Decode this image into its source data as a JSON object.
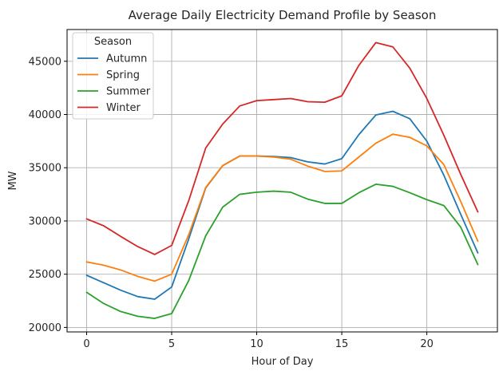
{
  "chart_data": {
    "type": "line",
    "title": "Average Daily Electricity Demand Profile by Season",
    "xlabel": "Hour of Day",
    "ylabel": "MW",
    "x": [
      0,
      1,
      2,
      3,
      4,
      5,
      6,
      7,
      8,
      9,
      10,
      11,
      12,
      13,
      14,
      15,
      16,
      17,
      18,
      19,
      20,
      21,
      22,
      23
    ],
    "xlim": [
      -1.15,
      24.15
    ],
    "ylim": [
      19580,
      47980
    ],
    "xticks": [
      0,
      5,
      10,
      15,
      20
    ],
    "yticks": [
      20000,
      25000,
      30000,
      35000,
      40000,
      45000
    ],
    "xtick_labels": [
      "0",
      "5",
      "10",
      "15",
      "20"
    ],
    "ytick_labels": [
      "20000",
      "25000",
      "30000",
      "35000",
      "40000",
      "45000"
    ],
    "grid": true,
    "legend": {
      "title": "Season",
      "placement": "top-left"
    },
    "series": [
      {
        "name": "Autumn",
        "color": "#1f77b4",
        "values": [
          24900,
          24200,
          23500,
          22900,
          22650,
          23800,
          28300,
          33100,
          35200,
          36100,
          36100,
          36050,
          35950,
          35550,
          35350,
          35850,
          38100,
          39950,
          40300,
          39600,
          37500,
          34300,
          30600,
          27000
        ]
      },
      {
        "name": "Spring",
        "color": "#ff7f0e",
        "values": [
          26150,
          25850,
          25400,
          24800,
          24350,
          25000,
          28700,
          33150,
          35200,
          36100,
          36100,
          36000,
          35800,
          35150,
          34650,
          34700,
          36000,
          37300,
          38150,
          37850,
          37050,
          35300,
          31800,
          28100
        ]
      },
      {
        "name": "Summer",
        "color": "#2ca02c",
        "values": [
          23300,
          22250,
          21500,
          21050,
          20850,
          21300,
          24400,
          28600,
          31300,
          32500,
          32700,
          32800,
          32700,
          32050,
          31650,
          31650,
          32650,
          33450,
          33250,
          32650,
          32000,
          31450,
          29400,
          25900
        ]
      },
      {
        "name": "Winter",
        "color": "#d62728",
        "values": [
          30200,
          29550,
          28550,
          27600,
          26850,
          27700,
          31900,
          36850,
          39100,
          40800,
          41300,
          41400,
          41500,
          41200,
          41150,
          41750,
          44600,
          46750,
          46350,
          44350,
          41500,
          38050,
          34350,
          30850
        ]
      }
    ]
  }
}
